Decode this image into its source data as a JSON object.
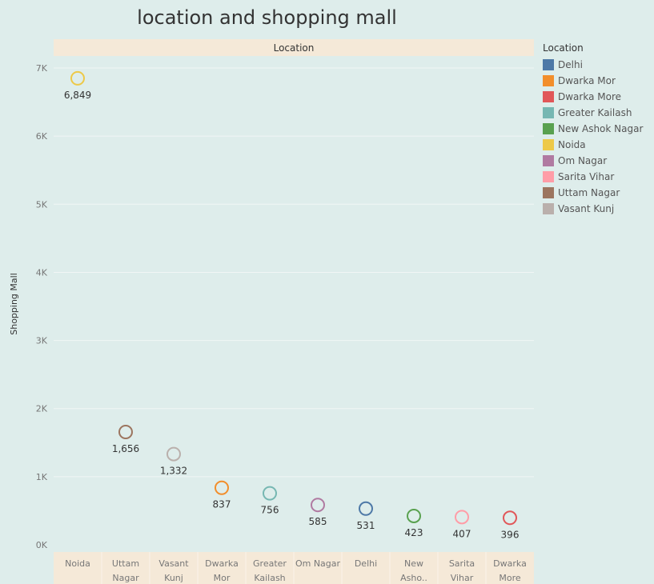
{
  "title": "location and shopping mall",
  "chart_data": {
    "type": "scatter",
    "header": "Location",
    "ylabel": "Shopping Mall",
    "ylim": [
      0,
      7500
    ],
    "yticks": [
      0,
      1000,
      2000,
      3000,
      4000,
      5000,
      6000,
      7000
    ],
    "ytick_labels": [
      "0K",
      "1K",
      "2K",
      "3K",
      "4K",
      "5K",
      "6K",
      "7K"
    ],
    "grid": true,
    "legend_position": "right",
    "categories": [
      {
        "label_lines": [
          "Noida"
        ],
        "location": "Noida",
        "value": 6849,
        "value_label": "6,849"
      },
      {
        "label_lines": [
          "Uttam",
          "Nagar"
        ],
        "location": "Uttam Nagar",
        "value": 1656,
        "value_label": "1,656"
      },
      {
        "label_lines": [
          "Vasant",
          "Kunj"
        ],
        "location": "Vasant Kunj",
        "value": 1332,
        "value_label": "1,332"
      },
      {
        "label_lines": [
          "Dwarka",
          "Mor"
        ],
        "location": "Dwarka Mor",
        "value": 837,
        "value_label": "837"
      },
      {
        "label_lines": [
          "Greater",
          "Kailash"
        ],
        "location": "Greater Kailash",
        "value": 756,
        "value_label": "756"
      },
      {
        "label_lines": [
          "Om Nagar"
        ],
        "location": "Om Nagar",
        "value": 585,
        "value_label": "585"
      },
      {
        "label_lines": [
          "Delhi"
        ],
        "location": "Delhi",
        "value": 531,
        "value_label": "531"
      },
      {
        "label_lines": [
          "New",
          "Asho.."
        ],
        "location": "New Ashok Nagar",
        "value": 423,
        "value_label": "423"
      },
      {
        "label_lines": [
          "Sarita",
          "Vihar"
        ],
        "location": "Sarita Vihar",
        "value": 407,
        "value_label": "407"
      },
      {
        "label_lines": [
          "Dwarka",
          "More"
        ],
        "location": "Dwarka More",
        "value": 396,
        "value_label": "396"
      }
    ]
  },
  "legend": {
    "title": "Location",
    "items": [
      {
        "label": "Delhi",
        "color": "#4e79a7"
      },
      {
        "label": "Dwarka Mor",
        "color": "#f28e2b"
      },
      {
        "label": "Dwarka More",
        "color": "#e15759"
      },
      {
        "label": "Greater Kailash",
        "color": "#76b7b2"
      },
      {
        "label": "New Ashok Nagar",
        "color": "#59a14f"
      },
      {
        "label": "Noida",
        "color": "#edc948"
      },
      {
        "label": "Om Nagar",
        "color": "#b07aa1"
      },
      {
        "label": "Sarita Vihar",
        "color": "#ff9da7"
      },
      {
        "label": "Uttam Nagar",
        "color": "#9c755f"
      },
      {
        "label": "Vasant Kunj",
        "color": "#bab0ac"
      }
    ]
  }
}
